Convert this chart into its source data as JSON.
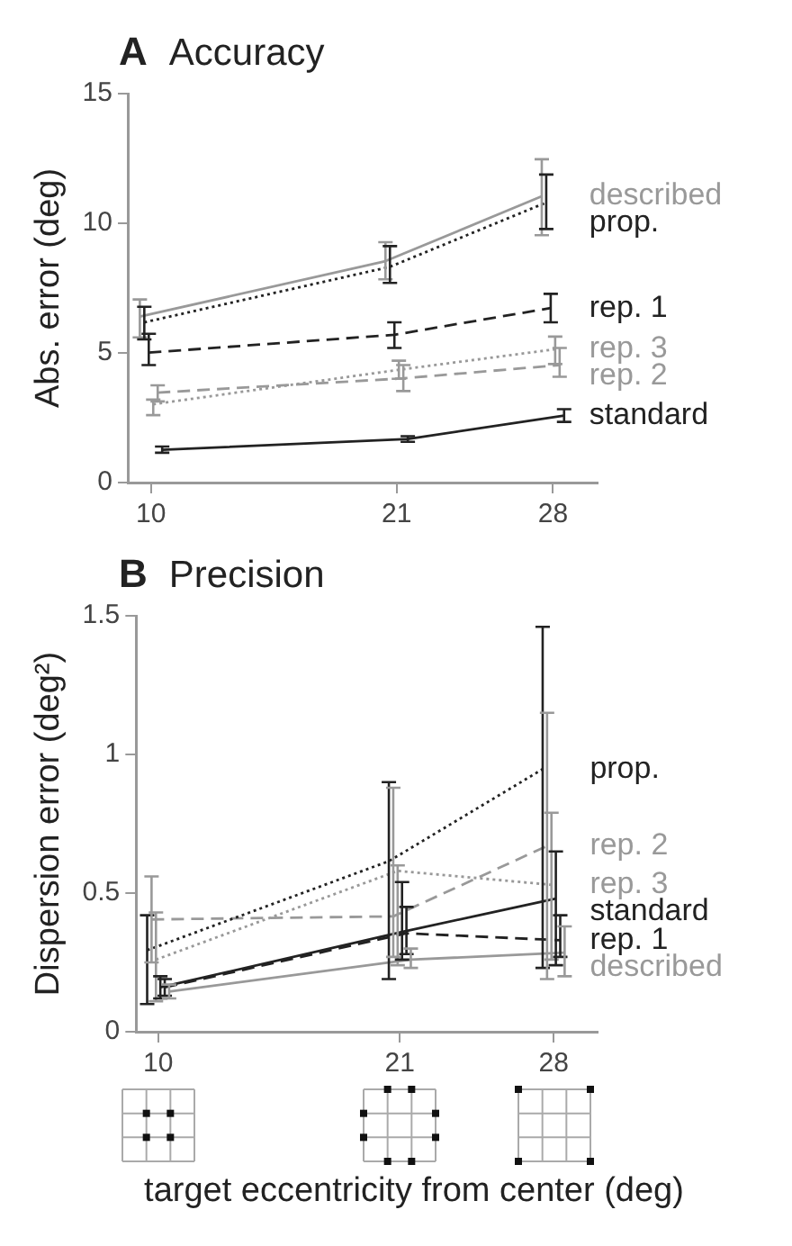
{
  "chart_data": [
    {
      "type": "line",
      "title": "Accuracy",
      "annotations": [
        "A"
      ],
      "ylabel": "Abs. error (deg)",
      "xlim": [
        9,
        30
      ],
      "xticks": [
        10,
        21,
        28
      ],
      "ylim": [
        0,
        15
      ],
      "yticks": [
        0,
        5,
        10,
        15
      ],
      "grid": false,
      "legend": false,
      "series": [
        {
          "name": "described",
          "color": "#999999",
          "line_style": "solid",
          "x": [
            9.5,
            20.5,
            27.5
          ],
          "values": [
            6.4,
            8.54,
            11.04
          ],
          "errors": [
            [
              5.6,
              7.06
            ],
            [
              7.84,
              9.27
            ],
            [
              9.54,
              12.47
            ]
          ]
        },
        {
          "name": "prop.",
          "color": "#222222",
          "line_style": "dotted",
          "x": [
            9.7,
            20.7,
            27.7
          ],
          "values": [
            6.18,
            8.32,
            10.8
          ],
          "errors": [
            [
              5.52,
              6.78
            ],
            [
              7.7,
              9.12
            ],
            [
              9.78,
              11.88
            ]
          ]
        },
        {
          "name": "rep. 1",
          "color": "#222222",
          "line_style": "dashed",
          "x": [
            9.9,
            20.9,
            27.9
          ],
          "values": [
            5.01,
            5.7,
            6.73
          ],
          "errors": [
            [
              4.53,
              5.74
            ],
            [
              5.19,
              6.18
            ],
            [
              6.18,
              7.28
            ]
          ]
        },
        {
          "name": "rep. 3",
          "color": "#999999",
          "line_style": "dotted",
          "x": [
            10.1,
            21.1,
            28.1
          ],
          "values": [
            3.02,
            4.35,
            5.14
          ],
          "errors": [
            [
              2.6,
              3.2
            ],
            [
              4.0,
              4.7
            ],
            [
              4.57,
              5.63
            ]
          ]
        },
        {
          "name": "rep. 2",
          "color": "#999999",
          "line_style": "dashed",
          "x": [
            10.3,
            21.3,
            28.3
          ],
          "values": [
            3.47,
            4.02,
            4.53
          ],
          "errors": [
            [
              3.13,
              3.75
            ],
            [
              3.53,
              4.53
            ],
            [
              4.08,
              5.19
            ]
          ]
        },
        {
          "name": "standard",
          "color": "#222222",
          "line_style": "solid",
          "x": [
            10.5,
            21.5,
            28.5
          ],
          "values": [
            1.26,
            1.68,
            2.58
          ],
          "errors": [
            [
              1.15,
              1.39
            ],
            [
              1.57,
              1.79
            ],
            [
              2.34,
              2.83
            ]
          ]
        }
      ]
    },
    {
      "type": "line",
      "title": "Precision",
      "annotations": [
        "B"
      ],
      "ylabel": "Dispersion error (deg²)",
      "xlabel": "target eccentricity from center (deg)",
      "xlim": [
        9,
        30
      ],
      "xticks": [
        10,
        21,
        28
      ],
      "ylim": [
        0,
        1.5
      ],
      "yticks": [
        0,
        0.5,
        1,
        1.5
      ],
      "grid": false,
      "legend": false,
      "series": [
        {
          "name": "prop.",
          "color": "#222222",
          "line_style": "dotted",
          "x": [
            9.5,
            20.5,
            27.5
          ],
          "values": [
            0.294,
            0.615,
            0.947
          ],
          "errors": [
            [
              0.1,
              0.42
            ],
            [
              0.19,
              0.9
            ],
            [
              0.23,
              1.46
            ]
          ]
        },
        {
          "name": "rep. 2",
          "color": "#999999",
          "line_style": "dashed",
          "x": [
            9.7,
            20.7,
            27.7
          ],
          "values": [
            0.405,
            0.416,
            0.67
          ],
          "errors": [
            [
              0.25,
              0.56
            ],
            [
              0.27,
              0.88
            ],
            [
              0.19,
              1.15
            ]
          ]
        },
        {
          "name": "rep. 3",
          "color": "#999999",
          "line_style": "dotted",
          "x": [
            9.9,
            20.9,
            27.9
          ],
          "values": [
            0.26,
            0.58,
            0.53
          ],
          "errors": [
            [
              0.11,
              0.43
            ],
            [
              0.24,
              0.6
            ],
            [
              0.26,
              0.79
            ]
          ]
        },
        {
          "name": "standard",
          "color": "#222222",
          "line_style": "solid",
          "x": [
            10.1,
            21.1,
            28.1
          ],
          "values": [
            0.16,
            0.36,
            0.48
          ],
          "errors": [
            [
              0.12,
              0.2
            ],
            [
              0.26,
              0.54
            ],
            [
              0.24,
              0.65
            ]
          ]
        },
        {
          "name": "rep. 1",
          "color": "#222222",
          "line_style": "dashed",
          "x": [
            10.3,
            21.3,
            28.3
          ],
          "values": [
            0.16,
            0.355,
            0.33
          ],
          "errors": [
            [
              0.13,
              0.19
            ],
            [
              0.28,
              0.45
            ],
            [
              0.27,
              0.42
            ]
          ]
        },
        {
          "name": "described",
          "color": "#999999",
          "line_style": "solid",
          "x": [
            10.5,
            21.5,
            28.5
          ],
          "values": [
            0.145,
            0.26,
            0.285
          ],
          "errors": [
            [
              0.12,
              0.17
            ],
            [
              0.23,
              0.3
            ],
            [
              0.2,
              0.38
            ]
          ]
        }
      ]
    }
  ]
}
